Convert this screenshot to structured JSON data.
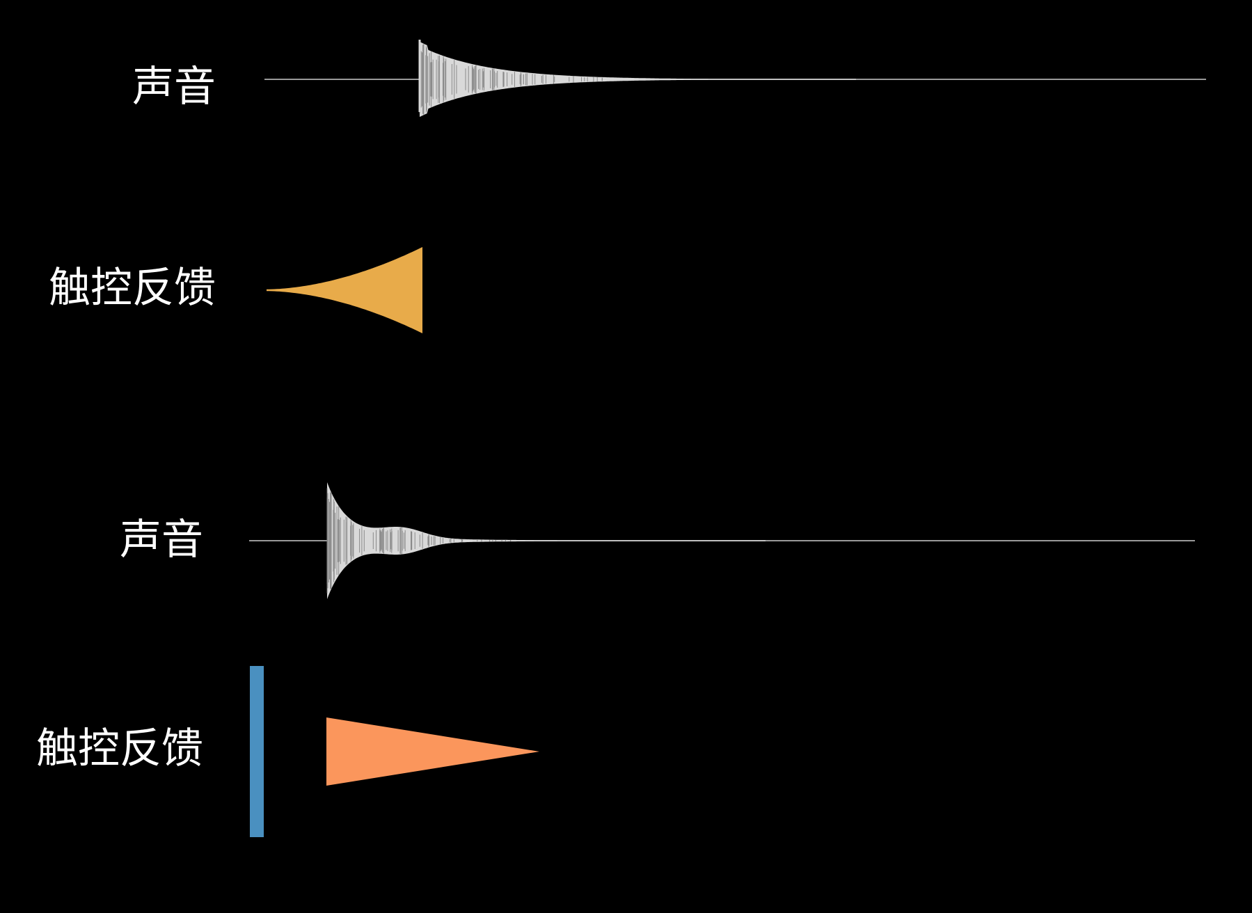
{
  "rows": [
    {
      "label": "声音",
      "kind": "sound",
      "shape": "decaying-waveform",
      "color": "#d9d9d9"
    },
    {
      "label": "触控反馈",
      "kind": "haptic",
      "shape": "rising-flared-wedge",
      "color": "#e8ab4a"
    },
    {
      "label": "声音",
      "kind": "sound",
      "shape": "decaying-waveform-with-secondary-swell",
      "color": "#d9d9d9"
    },
    {
      "label": "触控反馈",
      "kind": "haptic",
      "shape": "decaying-triangle",
      "color": "#fb965c",
      "marker_color": "#4a90c0"
    }
  ]
}
